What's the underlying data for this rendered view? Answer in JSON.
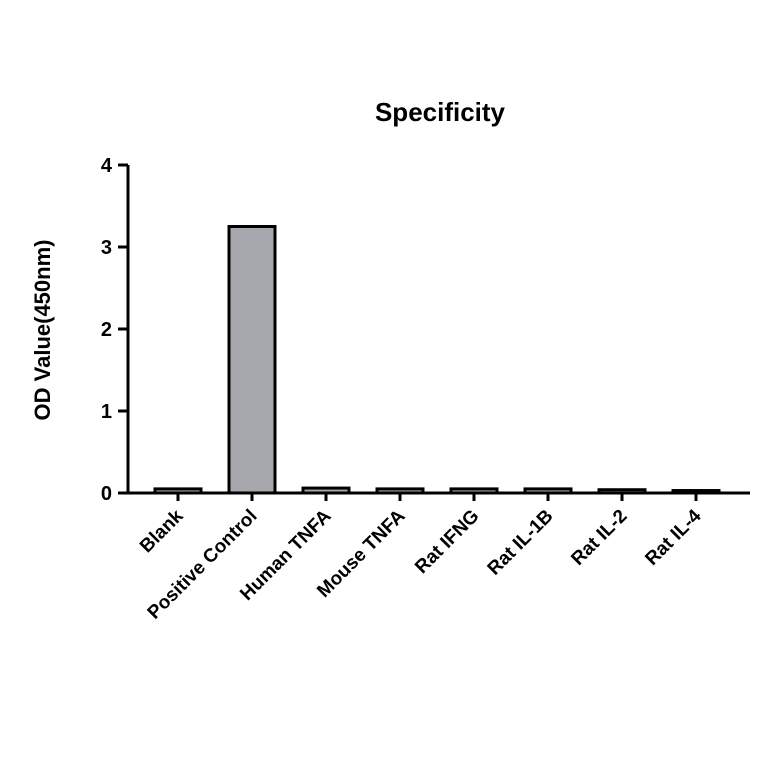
{
  "chart_data": {
    "type": "bar",
    "title": "Specificity",
    "xlabel": "",
    "ylabel": "OD Value(450nm)",
    "categories": [
      "Blank",
      "Positive Control",
      "Human TNFA",
      "Mouse TNFA",
      "Rat IFNG",
      "Rat IL-1B",
      "Rat IL-2",
      "Rat IL-4"
    ],
    "values": [
      0.05,
      3.25,
      0.06,
      0.05,
      0.05,
      0.05,
      0.04,
      0.03
    ],
    "ylim": [
      0,
      4
    ],
    "yticks": [
      "0",
      "1",
      "2",
      "3",
      "4"
    ],
    "bar_color": "#a7a7ae",
    "grid": false,
    "legend": "none"
  }
}
